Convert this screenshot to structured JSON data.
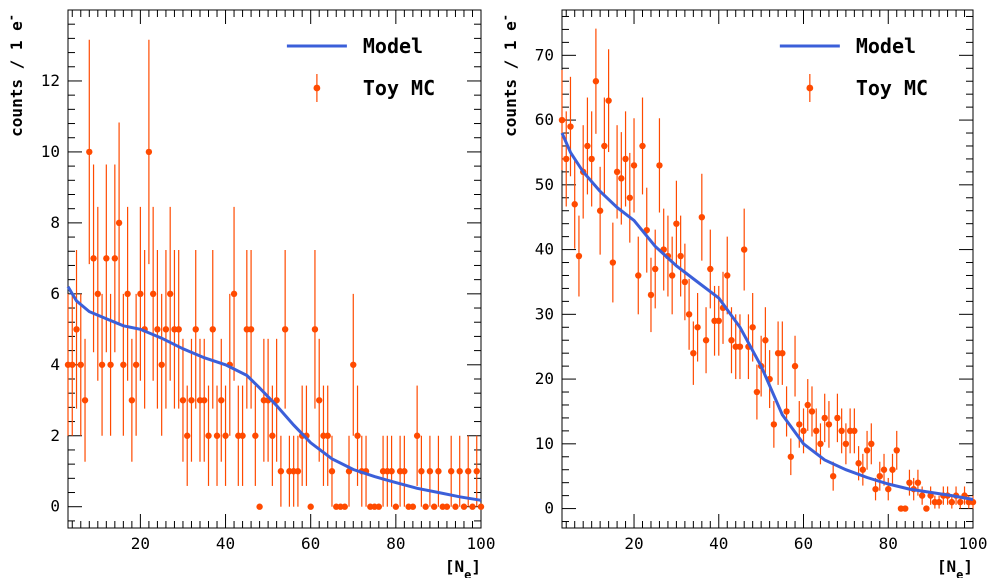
{
  "chart_data": [
    {
      "type": "scatter",
      "title": "",
      "xlabel": "[N",
      "xlabel_sub": "e",
      "ylabel": "counts / 1 e",
      "ylabel_sup": "-",
      "xlim": [
        3,
        100
      ],
      "ylim": [
        -0.6,
        14.0
      ],
      "xticks": [
        20,
        40,
        60,
        80,
        100
      ],
      "yticks": [
        0,
        2,
        4,
        6,
        8,
        10,
        12
      ],
      "legend": {
        "position": "top-right",
        "entries": [
          "Model",
          "Toy MC"
        ]
      },
      "colors": {
        "model": "#3b5fd9",
        "toy": "#ff4a00"
      },
      "series": [
        {
          "name": "Model",
          "type": "line",
          "x": [
            3,
            5,
            8,
            12,
            16,
            20,
            25,
            30,
            35,
            40,
            45,
            48,
            52,
            56,
            60,
            65,
            70,
            75,
            80,
            85,
            90,
            95,
            100
          ],
          "y": [
            6.2,
            5.8,
            5.5,
            5.3,
            5.1,
            5.0,
            4.75,
            4.45,
            4.2,
            4.0,
            3.7,
            3.35,
            2.85,
            2.3,
            1.8,
            1.35,
            1.05,
            0.85,
            0.68,
            0.52,
            0.4,
            0.28,
            0.18
          ]
        },
        {
          "name": "Toy MC",
          "type": "scatter_errorbars",
          "x": [
            3,
            4,
            5,
            6,
            7,
            8,
            9,
            10,
            11,
            12,
            13,
            14,
            15,
            16,
            17,
            18,
            19,
            20,
            21,
            22,
            23,
            24,
            25,
            26,
            27,
            28,
            29,
            30,
            31,
            32,
            33,
            34,
            35,
            36,
            37,
            38,
            39,
            40,
            41,
            42,
            43,
            44,
            45,
            46,
            47,
            48,
            49,
            50,
            51,
            52,
            53,
            54,
            55,
            56,
            57,
            58,
            59,
            60,
            61,
            62,
            63,
            64,
            65,
            66,
            67,
            68,
            69,
            70,
            71,
            72,
            73,
            74,
            75,
            76,
            77,
            78,
            79,
            80,
            81,
            82,
            83,
            84,
            85,
            86,
            87,
            88,
            89,
            90,
            91,
            92,
            93,
            94,
            95,
            96,
            97,
            98,
            99,
            100
          ],
          "y": [
            4,
            4,
            5,
            4,
            3,
            10,
            7,
            6,
            4,
            7,
            4,
            7,
            8,
            4,
            6,
            3,
            4,
            6,
            5,
            10,
            6,
            5,
            4,
            5,
            6,
            5,
            5,
            3,
            2,
            3,
            5,
            3,
            3,
            2,
            5,
            2,
            3,
            2,
            4,
            6,
            2,
            2,
            5,
            5,
            2,
            0,
            3,
            3,
            2,
            3,
            1,
            5,
            1,
            1,
            1,
            2,
            2,
            0,
            5,
            3,
            2,
            2,
            1,
            0,
            0,
            0,
            1,
            4,
            2,
            1,
            1,
            0,
            0,
            0,
            1,
            1,
            1,
            0,
            1,
            1,
            0,
            0,
            2,
            1,
            0,
            1,
            0,
            1,
            0,
            0,
            1,
            0,
            1,
            0,
            1,
            0,
            1,
            0
          ],
          "err": "sqrt(y)"
        }
      ]
    },
    {
      "type": "scatter",
      "title": "",
      "xlabel": "[N",
      "xlabel_sub": "e",
      "ylabel": "counts / 1 e",
      "ylabel_sup": "-",
      "xlim": [
        3,
        100
      ],
      "ylim": [
        -3.0,
        77.0
      ],
      "xticks": [
        20,
        40,
        60,
        80,
        100
      ],
      "yticks": [
        0,
        10,
        20,
        30,
        40,
        50,
        60,
        70
      ],
      "legend": {
        "position": "top-right",
        "entries": [
          "Model",
          "Toy MC"
        ]
      },
      "colors": {
        "model": "#3b5fd9",
        "toy": "#ff4a00"
      },
      "series": [
        {
          "name": "Model",
          "type": "line",
          "x": [
            3,
            5,
            8,
            12,
            16,
            20,
            25,
            30,
            35,
            40,
            45,
            50,
            55,
            60,
            65,
            70,
            75,
            80,
            85,
            90,
            95,
            100
          ],
          "y": [
            58,
            55,
            52,
            49,
            46.5,
            44.5,
            40.5,
            37.5,
            35,
            32.5,
            28,
            22,
            14.5,
            10,
            7.5,
            6,
            4.8,
            3.8,
            3.0,
            2.5,
            2.0,
            1.4
          ]
        },
        {
          "name": "Toy MC",
          "type": "scatter_errorbars",
          "x": [
            3,
            4,
            5,
            6,
            7,
            8,
            9,
            10,
            11,
            12,
            13,
            14,
            15,
            16,
            17,
            18,
            19,
            20,
            21,
            22,
            23,
            24,
            25,
            26,
            27,
            28,
            29,
            30,
            31,
            32,
            33,
            34,
            35,
            36,
            37,
            38,
            39,
            40,
            41,
            42,
            43,
            44,
            45,
            46,
            47,
            48,
            49,
            50,
            51,
            52,
            53,
            54,
            55,
            56,
            57,
            58,
            59,
            60,
            61,
            62,
            63,
            64,
            65,
            66,
            67,
            68,
            69,
            70,
            71,
            72,
            73,
            74,
            75,
            76,
            77,
            78,
            79,
            80,
            81,
            82,
            83,
            84,
            85,
            86,
            87,
            88,
            89,
            90,
            91,
            92,
            93,
            94,
            95,
            96,
            97,
            98,
            99,
            100
          ],
          "y": [
            60,
            54,
            59,
            47,
            39,
            52,
            56,
            54,
            66,
            46,
            56,
            63,
            38,
            52,
            51,
            54,
            48,
            53,
            36,
            56,
            43,
            33,
            37,
            53,
            40,
            39,
            36,
            44,
            39,
            35,
            30,
            24,
            28,
            45,
            26,
            37,
            29,
            29,
            31,
            36,
            26,
            25,
            25,
            40,
            25,
            28,
            18,
            22,
            26,
            20,
            13,
            24,
            24,
            15,
            8,
            22,
            13,
            12,
            16,
            15,
            12,
            10,
            14,
            13,
            5,
            14,
            12,
            10,
            12,
            12,
            7,
            6,
            9,
            10,
            3,
            5,
            6,
            3,
            6,
            9,
            0,
            0,
            4,
            3,
            4,
            2,
            0,
            2,
            1,
            1,
            2,
            2,
            1,
            2,
            1,
            2,
            1,
            1
          ],
          "err": "sqrt(y)"
        }
      ]
    }
  ]
}
